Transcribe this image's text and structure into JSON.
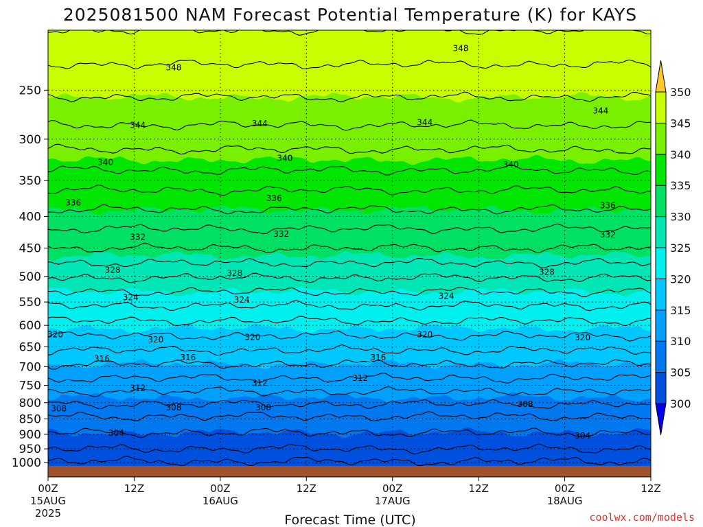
{
  "chart_data": {
    "type": "heatmap",
    "title": "2025081500 NAM Forecast Potential Temperature (K) for KAYS",
    "xlabel": "Forecast Time (UTC)",
    "ylabel": "",
    "credit": "coolwx.com/models",
    "x_ticks": [
      {
        "hour": 0,
        "label": "00Z",
        "date": "15AUG",
        "year": "2025"
      },
      {
        "hour": 12,
        "label": "12Z"
      },
      {
        "hour": 24,
        "label": "00Z",
        "date": "16AUG"
      },
      {
        "hour": 36,
        "label": "12Z"
      },
      {
        "hour": 48,
        "label": "00Z",
        "date": "17AUG"
      },
      {
        "hour": 60,
        "label": "12Z"
      },
      {
        "hour": 72,
        "label": "00Z",
        "date": "18AUG"
      },
      {
        "hour": 84,
        "label": "12Z"
      }
    ],
    "xlim": [
      0,
      84
    ],
    "y_ticks": [
      250,
      300,
      350,
      400,
      450,
      500,
      550,
      600,
      650,
      700,
      750,
      800,
      850,
      900,
      950,
      1000
    ],
    "ylim": [
      1015,
      200
    ],
    "y_scale": "log",
    "grid": true,
    "colorbar": {
      "levels": [
        300,
        305,
        310,
        315,
        320,
        325,
        330,
        335,
        340,
        345,
        350
      ],
      "colors": [
        "#0000ee",
        "#0050e0",
        "#0078f0",
        "#00a0ff",
        "#00c8ff",
        "#00f0f0",
        "#00e6b4",
        "#00e164",
        "#00e600",
        "#78f000",
        "#c8ff00",
        "#ffff00",
        "#ffc828"
      ]
    },
    "theta_profile": [
      {
        "p": 1000,
        "theta": 300.8
      },
      {
        "p": 950,
        "theta": 303.0
      },
      {
        "p": 900,
        "theta": 304.8
      },
      {
        "p": 850,
        "theta": 306.6
      },
      {
        "p": 800,
        "theta": 309.2
      },
      {
        "p": 750,
        "theta": 312.0
      },
      {
        "p": 700,
        "theta": 314.6
      },
      {
        "p": 650,
        "theta": 317.5
      },
      {
        "p": 600,
        "theta": 320.4
      },
      {
        "p": 550,
        "theta": 323.5
      },
      {
        "p": 500,
        "theta": 327.2
      },
      {
        "p": 450,
        "theta": 331.0
      },
      {
        "p": 400,
        "theta": 334.3
      },
      {
        "p": 350,
        "theta": 338.0
      },
      {
        "p": 300,
        "theta": 342.0
      },
      {
        "p": 250,
        "theta": 345.5
      },
      {
        "p": 220,
        "theta": 347.5
      },
      {
        "p": 200,
        "theta": 349.0
      }
    ],
    "contour_labels": [
      {
        "value": "348",
        "hour": 17.5,
        "p": 230
      },
      {
        "value": "348",
        "hour": 57.5,
        "p": 214
      },
      {
        "value": "344",
        "hour": 12.5,
        "p": 285
      },
      {
        "value": "344",
        "hour": 29.5,
        "p": 283
      },
      {
        "value": "344",
        "hour": 52.5,
        "p": 282
      },
      {
        "value": "344",
        "hour": 77.0,
        "p": 270
      },
      {
        "value": "340",
        "hour": 8.0,
        "p": 327
      },
      {
        "value": "340",
        "hour": 33.0,
        "p": 322
      },
      {
        "value": "340",
        "hour": 64.5,
        "p": 330
      },
      {
        "value": "336",
        "hour": 3.5,
        "p": 380
      },
      {
        "value": "336",
        "hour": 31.5,
        "p": 374
      },
      {
        "value": "336",
        "hour": 78.0,
        "p": 384
      },
      {
        "value": "332",
        "hour": 12.5,
        "p": 432
      },
      {
        "value": "332",
        "hour": 32.5,
        "p": 427
      },
      {
        "value": "332",
        "hour": 78.0,
        "p": 428
      },
      {
        "value": "328",
        "hour": 9.0,
        "p": 488
      },
      {
        "value": "328",
        "hour": 26.0,
        "p": 494
      },
      {
        "value": "328",
        "hour": 69.5,
        "p": 492
      },
      {
        "value": "324",
        "hour": 11.5,
        "p": 541
      },
      {
        "value": "324",
        "hour": 27.0,
        "p": 546
      },
      {
        "value": "324",
        "hour": 55.5,
        "p": 538
      },
      {
        "value": "320",
        "hour": 1.0,
        "p": 621
      },
      {
        "value": "320",
        "hour": 15.0,
        "p": 633
      },
      {
        "value": "320",
        "hour": 28.5,
        "p": 627
      },
      {
        "value": "320",
        "hour": 52.5,
        "p": 621
      },
      {
        "value": "320",
        "hour": 74.5,
        "p": 628
      },
      {
        "value": "316",
        "hour": 7.5,
        "p": 680
      },
      {
        "value": "316",
        "hour": 19.5,
        "p": 676
      },
      {
        "value": "316",
        "hour": 46.0,
        "p": 676
      },
      {
        "value": "312",
        "hour": 12.5,
        "p": 758
      },
      {
        "value": "312",
        "hour": 29.5,
        "p": 743
      },
      {
        "value": "312",
        "hour": 43.5,
        "p": 730
      },
      {
        "value": "308",
        "hour": 1.5,
        "p": 818
      },
      {
        "value": "308",
        "hour": 17.5,
        "p": 815
      },
      {
        "value": "308",
        "hour": 30.0,
        "p": 815
      },
      {
        "value": "308",
        "hour": 66.5,
        "p": 805
      },
      {
        "value": "304",
        "hour": 9.5,
        "p": 896
      },
      {
        "value": "304",
        "hour": 74.5,
        "p": 905
      }
    ]
  }
}
